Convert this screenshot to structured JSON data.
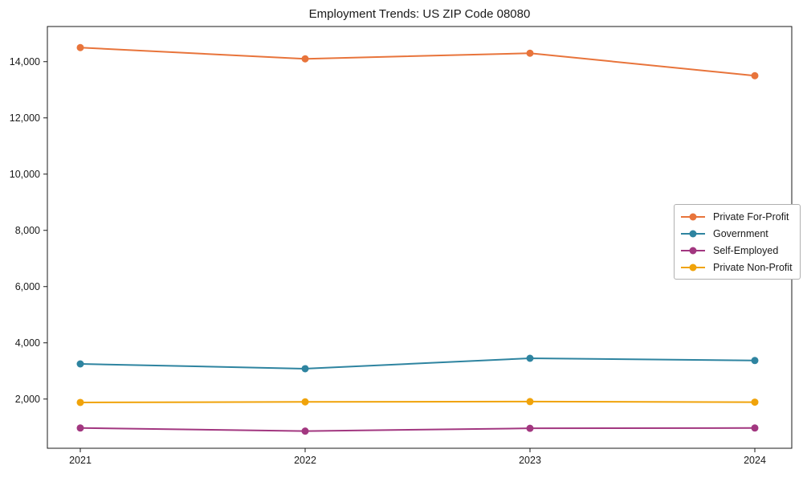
{
  "chart_data": {
    "type": "line",
    "title": "Employment Trends: US ZIP Code 08080",
    "xlabel": "",
    "ylabel": "",
    "x": [
      "2021",
      "2022",
      "2023",
      "2024"
    ],
    "series": [
      {
        "name": "Private For-Profit",
        "color": "#E8743B",
        "values": [
          14500,
          14100,
          14300,
          13500
        ]
      },
      {
        "name": "Government",
        "color": "#2E84A0",
        "values": [
          3250,
          3080,
          3450,
          3370
        ]
      },
      {
        "name": "Self-Employed",
        "color": "#A23780",
        "values": [
          970,
          860,
          960,
          970
        ]
      },
      {
        "name": "Private Non-Profit",
        "color": "#F0A30A",
        "values": [
          1880,
          1900,
          1910,
          1890
        ]
      }
    ],
    "ylim": [
      250,
      15250
    ],
    "yticks": [
      2000,
      4000,
      6000,
      8000,
      10000,
      12000,
      14000
    ],
    "ytick_labels": [
      "2,000",
      "4,000",
      "6,000",
      "8,000",
      "10,000",
      "12,000",
      "14,000"
    ],
    "xtick_labels": [
      "2021",
      "2022",
      "2023",
      "2024"
    ],
    "grid": false,
    "marker": "circle",
    "legend_position": "center-right"
  }
}
